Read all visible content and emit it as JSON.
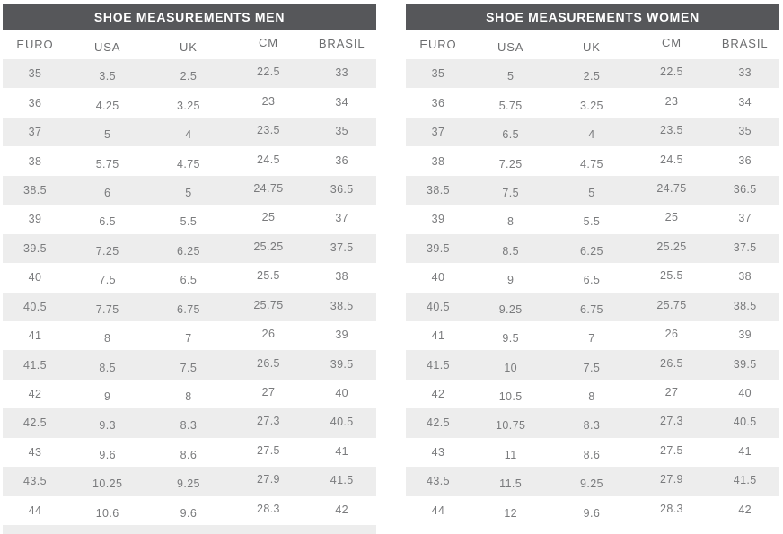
{
  "colors": {
    "title_bar_bg": "#56575a",
    "title_bar_text": "#ffffff",
    "row_stripe_bg": "#ededed",
    "column_header_text": "#6c6d6f",
    "cell_text": "#7a7b7d",
    "page_bg": "#ffffff"
  },
  "chart_data": [
    {
      "type": "table",
      "title": "SHOE MEASUREMENTS MEN",
      "columns": [
        "EURO",
        "USA",
        "UK",
        "CM",
        "BRASIL"
      ],
      "rows": [
        [
          "35",
          "3.5",
          "2.5",
          "22.5",
          "33"
        ],
        [
          "36",
          "4.25",
          "3.25",
          "23",
          "34"
        ],
        [
          "37",
          "5",
          "4",
          "23.5",
          "35"
        ],
        [
          "38",
          "5.75",
          "4.75",
          "24.5",
          "36"
        ],
        [
          "38.5",
          "6",
          "5",
          "24.75",
          "36.5"
        ],
        [
          "39",
          "6.5",
          "5.5",
          "25",
          "37"
        ],
        [
          "39.5",
          "7.25",
          "6.25",
          "25.25",
          "37.5"
        ],
        [
          "40",
          "7.5",
          "6.5",
          "25.5",
          "38"
        ],
        [
          "40.5",
          "7.75",
          "6.75",
          "25.75",
          "38.5"
        ],
        [
          "41",
          "8",
          "7",
          "26",
          "39"
        ],
        [
          "41.5",
          "8.5",
          "7.5",
          "26.5",
          "39.5"
        ],
        [
          "42",
          "9",
          "8",
          "27",
          "40"
        ],
        [
          "42.5",
          "9.3",
          "8.3",
          "27.3",
          "40.5"
        ],
        [
          "43",
          "9.6",
          "8.6",
          "27.5",
          "41"
        ],
        [
          "43.5",
          "10.25",
          "9.25",
          "27.9",
          "41.5"
        ],
        [
          "44",
          "10.6",
          "9.6",
          "28.3",
          "42"
        ]
      ],
      "layout_hints": {
        "zebra_striping": true,
        "first_row_shaded": true,
        "partial_next_row_visible": true
      }
    },
    {
      "type": "table",
      "title": "SHOE MEASUREMENTS WOMEN",
      "columns": [
        "EURO",
        "USA",
        "UK",
        "CM",
        "BRASIL"
      ],
      "rows": [
        [
          "35",
          "5",
          "2.5",
          "22.5",
          "33"
        ],
        [
          "36",
          "5.75",
          "3.25",
          "23",
          "34"
        ],
        [
          "37",
          "6.5",
          "4",
          "23.5",
          "35"
        ],
        [
          "38",
          "7.25",
          "4.75",
          "24.5",
          "36"
        ],
        [
          "38.5",
          "7.5",
          "5",
          "24.75",
          "36.5"
        ],
        [
          "39",
          "8",
          "5.5",
          "25",
          "37"
        ],
        [
          "39.5",
          "8.5",
          "6.25",
          "25.25",
          "37.5"
        ],
        [
          "40",
          "9",
          "6.5",
          "25.5",
          "38"
        ],
        [
          "40.5",
          "9.25",
          "6.75",
          "25.75",
          "38.5"
        ],
        [
          "41",
          "9.5",
          "7",
          "26",
          "39"
        ],
        [
          "41.5",
          "10",
          "7.5",
          "26.5",
          "39.5"
        ],
        [
          "42",
          "10.5",
          "8",
          "27",
          "40"
        ],
        [
          "42.5",
          "10.75",
          "8.3",
          "27.3",
          "40.5"
        ],
        [
          "43",
          "11",
          "8.6",
          "27.5",
          "41"
        ],
        [
          "43.5",
          "11.5",
          "9.25",
          "27.9",
          "41.5"
        ],
        [
          "44",
          "12",
          "9.6",
          "28.3",
          "42"
        ]
      ],
      "layout_hints": {
        "zebra_striping": true,
        "first_row_shaded": true,
        "partial_next_row_visible": false
      }
    }
  ]
}
